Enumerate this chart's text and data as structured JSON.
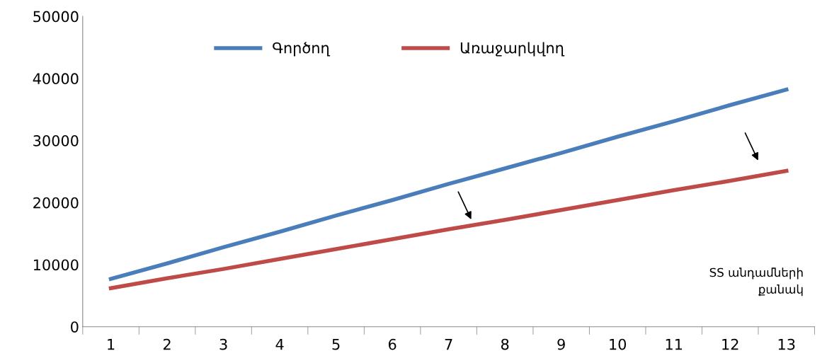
{
  "chart_data": {
    "type": "line",
    "xlabel": "SS անդամների\nքանակ",
    "categories": [
      "1",
      "2",
      "3",
      "4",
      "5",
      "6",
      "7",
      "8",
      "9",
      "10",
      "11",
      "12",
      "13"
    ],
    "series": [
      {
        "name": "Գործող",
        "color": "#4a7ebb",
        "values": [
          7700,
          10200,
          12800,
          15300,
          17900,
          20400,
          23000,
          25500,
          28000,
          30600,
          33100,
          35700,
          38200
        ]
      },
      {
        "name": "Առաջարկվող",
        "color": "#be4b48",
        "values": [
          6200,
          7800,
          9300,
          10900,
          12500,
          14100,
          15700,
          17200,
          18800,
          20400,
          22000,
          23500,
          25100
        ]
      }
    ],
    "ylim": [
      0,
      50000
    ],
    "yticks": [
      0,
      10000,
      20000,
      30000,
      40000,
      50000
    ],
    "grid": false,
    "legend": "top",
    "marker": "none",
    "line_style": "solid"
  }
}
